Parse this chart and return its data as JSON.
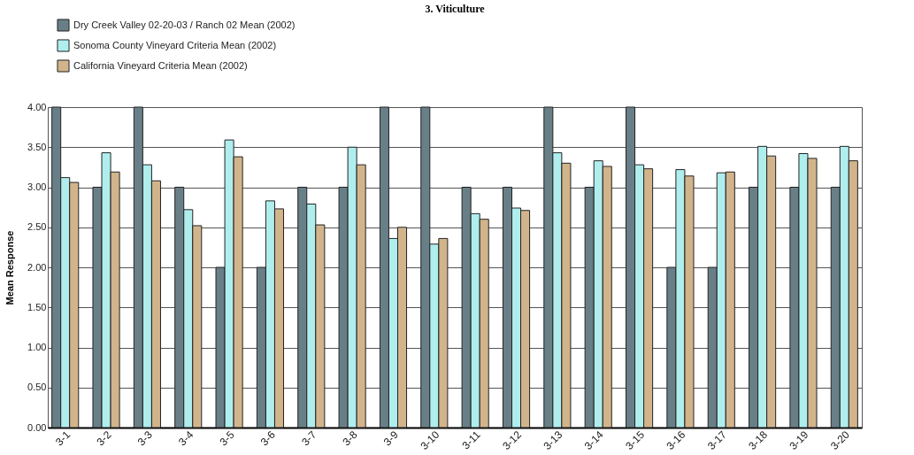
{
  "chart_data": {
    "type": "bar",
    "title": "3.  Viticulture",
    "ylabel": "Mean Response",
    "categories": [
      "3-1",
      "3-2",
      "3-3",
      "3-4",
      "3-5",
      "3-6",
      "3-7",
      "3-8",
      "3-9",
      "3-10",
      "3-11",
      "3-12",
      "3-13",
      "3-14",
      "3-15",
      "3-16",
      "3-17",
      "3-18",
      "3-19",
      "3-20"
    ],
    "series": [
      {
        "name": "Dry Creek Valley 02-20-03 / Ranch 02 Mean (2002)",
        "color": "#697f88",
        "values": [
          4,
          3,
          4,
          3,
          2,
          2,
          3,
          3,
          4,
          4,
          3,
          3,
          4,
          3,
          4,
          2,
          2,
          3,
          3,
          3
        ]
      },
      {
        "name": "Sonoma County Vineyard Criteria Mean (2002)",
        "color": "#b0eeee",
        "values": [
          3.12,
          3.43,
          3.28,
          2.72,
          3.59,
          2.83,
          2.79,
          3.5,
          2.36,
          2.29,
          2.67,
          2.74,
          3.43,
          3.33,
          3.28,
          3.22,
          3.18,
          3.51,
          3.42,
          3.51
        ]
      },
      {
        "name": "California Vineyard Criteria Mean (2002)",
        "color": "#d2b48c",
        "values": [
          3.06,
          3.19,
          3.08,
          2.52,
          3.38,
          2.73,
          2.53,
          3.28,
          2.5,
          2.36,
          2.6,
          2.71,
          3.3,
          3.26,
          3.23,
          3.14,
          3.19,
          3.39,
          3.36,
          3.33
        ]
      }
    ],
    "ylim": [
      0,
      4
    ],
    "yticks": [
      {
        "value": 0,
        "label": "0.00"
      },
      {
        "value": 0.5,
        "label": "0.50"
      },
      {
        "value": 1,
        "label": "1.00"
      },
      {
        "value": 1.5,
        "label": "1.50"
      },
      {
        "value": 2,
        "label": "2.00"
      },
      {
        "value": 2.5,
        "label": "2.50"
      },
      {
        "value": 3,
        "label": "3.00"
      },
      {
        "value": 3.5,
        "label": "3.50"
      },
      {
        "value": 4,
        "label": "4.00"
      }
    ],
    "grid": true,
    "legend": "top left"
  }
}
